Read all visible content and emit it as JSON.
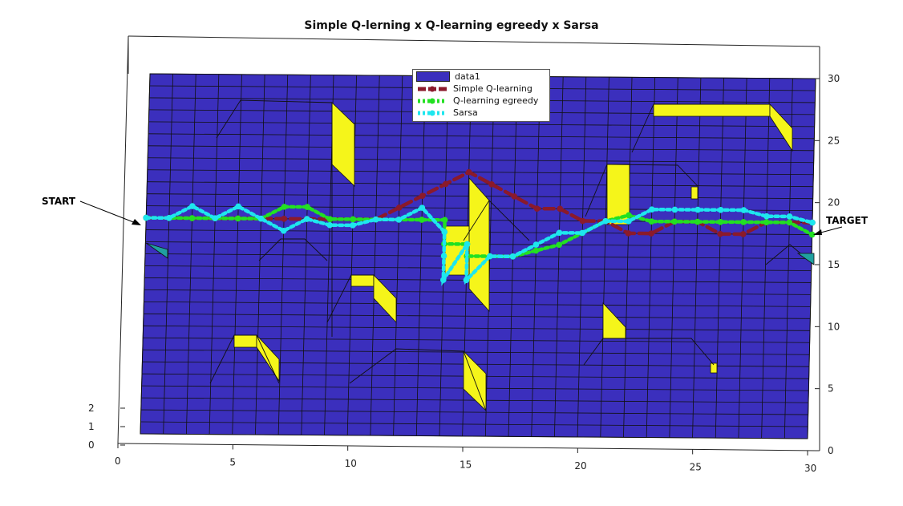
{
  "chart_data": {
    "type": "line",
    "title": "Simple Q-lerning x Q-learning egreedy x Sarsa",
    "xlabel": "",
    "ylabel": "",
    "xlim": [
      0,
      30
    ],
    "ylim": [
      0,
      30
    ],
    "xticks": [
      0,
      5,
      10,
      15,
      20,
      25,
      30
    ],
    "yticks_right": [
      0,
      5,
      10,
      15,
      20,
      25,
      30
    ],
    "zticks_left": [
      0,
      1,
      2
    ],
    "surface": {
      "name": "data1",
      "color": "#3b2fbd",
      "obstacle_color": "#f5f51a",
      "grid_size": 30
    },
    "annotations": [
      {
        "text": "START",
        "x": 1,
        "y": 18
      },
      {
        "text": "TARGET",
        "x": 30,
        "y": 18
      }
    ],
    "legend_position": "top-center",
    "series": [
      {
        "name": "Simple Q-learning",
        "color": "#8b1a2b",
        "style": "dashed",
        "x": [
          1,
          2,
          3,
          4,
          5,
          6,
          7,
          8,
          9,
          10,
          11,
          12,
          13,
          14,
          15,
          16,
          17,
          18,
          19,
          20,
          21,
          22,
          23,
          24,
          25,
          26,
          27,
          28,
          29,
          30
        ],
        "y": [
          18,
          18,
          18,
          18,
          18,
          18,
          18,
          18,
          18,
          18,
          18,
          19,
          20,
          21,
          22,
          21,
          20,
          19,
          19,
          18,
          18,
          17,
          17,
          18,
          18,
          17,
          17,
          18,
          18,
          18
        ]
      },
      {
        "name": "Q-learning egreedy",
        "color": "#22e022",
        "style": "dotted",
        "x": [
          1,
          2,
          3,
          4,
          5,
          6,
          7,
          8,
          9,
          10,
          11,
          12,
          13,
          14,
          14,
          14,
          15,
          15,
          16,
          17,
          18,
          19,
          20,
          21,
          22,
          23,
          24,
          25,
          26,
          27,
          28,
          29,
          30
        ],
        "y": [
          18,
          18,
          18,
          18,
          18,
          18,
          19,
          19,
          18,
          18,
          18,
          18,
          18,
          18,
          17,
          16,
          16,
          15,
          15,
          15,
          15.5,
          16,
          17,
          18,
          18.5,
          18,
          18,
          18,
          18,
          18,
          18,
          18,
          17
        ]
      },
      {
        "name": "Sarsa",
        "color": "#1ee6ee",
        "style": "dotted",
        "x": [
          1,
          2,
          3,
          4,
          5,
          6,
          7,
          8,
          9,
          10,
          11,
          12,
          13,
          14,
          14,
          14,
          15,
          15,
          16,
          17,
          18,
          19,
          20,
          21,
          22,
          23,
          24,
          25,
          26,
          27,
          28,
          29,
          30
        ],
        "y": [
          18,
          18,
          19,
          18,
          19,
          18,
          17,
          18,
          17.5,
          17.5,
          18,
          18,
          19,
          17,
          15,
          13,
          16,
          13,
          15,
          15,
          16,
          17,
          17,
          18,
          18,
          19,
          19,
          19,
          19,
          19,
          18.5,
          18.5,
          18
        ]
      }
    ]
  }
}
